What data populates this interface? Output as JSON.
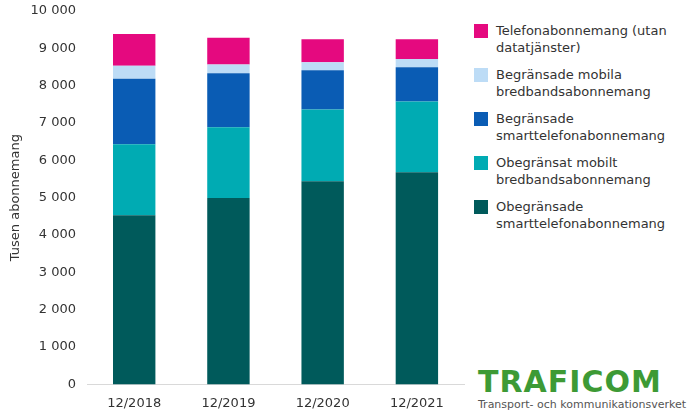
{
  "chart_data": {
    "type": "bar",
    "stacked": true,
    "y_label": "Tusen abonnemang",
    "categories": [
      "12/2018",
      "12/2019",
      "12/2020",
      "12/2021"
    ],
    "series": [
      {
        "name": "Obegränsade smarttelefonabonnemang",
        "color": "#005a5b",
        "values": [
          4530,
          4990,
          5440,
          5680
        ]
      },
      {
        "name": "Obegränsat mobilt bredbandsabonnemang",
        "color": "#00abb3",
        "values": [
          1900,
          1890,
          1920,
          1890
        ]
      },
      {
        "name": "Begränsade smarttelefonabonnemang",
        "color": "#0a5cb4",
        "values": [
          1750,
          1450,
          1050,
          920
        ]
      },
      {
        "name": "Begränsade mobila bredbandsabonnemang",
        "color": "#bddcf6",
        "values": [
          350,
          230,
          210,
          220
        ]
      },
      {
        "name": "Telefonabonnemang (utan datatjänster)",
        "color": "#e5097f",
        "values": [
          850,
          720,
          620,
          530
        ]
      }
    ],
    "ylim": [
      0,
      10000
    ],
    "yticks": [
      0,
      {
        "value": 1000,
        "label": "1 000"
      },
      {
        "value": 2000,
        "label": "2 000"
      },
      {
        "value": 3000,
        "label": "3 000"
      },
      {
        "value": 4000,
        "label": "4 000"
      },
      {
        "value": 5000,
        "label": "5 000"
      },
      {
        "value": 6000,
        "label": "6 000"
      },
      {
        "value": 7000,
        "label": "7 000"
      },
      {
        "value": 8000,
        "label": "8 000"
      },
      {
        "value": 9000,
        "label": "9 000"
      },
      {
        "value": 10000,
        "label": "10 000"
      }
    ],
    "grid": false,
    "legend": "right",
    "annotations": [
      "TRAFICOM",
      "Transport- och kommunikationsverket"
    ]
  }
}
